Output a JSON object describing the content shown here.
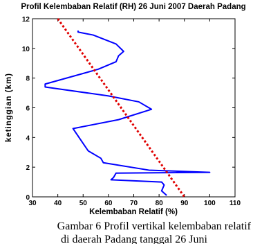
{
  "chart_data": {
    "type": "line",
    "title": "Profil Kelembaban Relatif (RH) 26 Juni 2007 Daerah Padang",
    "x_label": "Kelembaban Relatif (%)",
    "y_label": "ketinggian (km)",
    "xlim": [
      30,
      110
    ],
    "xticks": [
      30,
      40,
      50,
      60,
      70,
      80,
      90,
      100,
      110
    ],
    "ylim": [
      0,
      12
    ],
    "yticks": [
      0,
      2,
      4,
      6,
      8,
      10,
      12
    ],
    "series": [
      {
        "color": "#0000ff",
        "x": [
          83,
          81,
          82,
          81,
          61,
          62,
          63,
          100,
          76,
          58,
          57,
          52,
          50,
          46,
          52,
          64,
          77,
          72,
          60,
          35,
          35,
          56,
          63,
          64,
          66,
          63,
          54,
          48,
          48
        ],
        "values": [
          0.1,
          0.4,
          0.8,
          1.0,
          1.15,
          1.3,
          1.6,
          1.65,
          1.8,
          2.3,
          2.6,
          3.1,
          3.6,
          4.6,
          4.8,
          5.2,
          5.9,
          6.4,
          6.8,
          7.4,
          7.6,
          8.6,
          9.1,
          9.5,
          9.8,
          10.3,
          10.9,
          11.1,
          11.2
        ]
      },
      {
        "color": "#e00000",
        "dashed": true,
        "x": [
          40,
          90
        ],
        "values": [
          12,
          0
        ]
      }
    ]
  },
  "caption": [
    "Gambar 6  Profil vertikal kelembaban relatif",
    "di daerah Padang tanggal 26 Juni"
  ]
}
